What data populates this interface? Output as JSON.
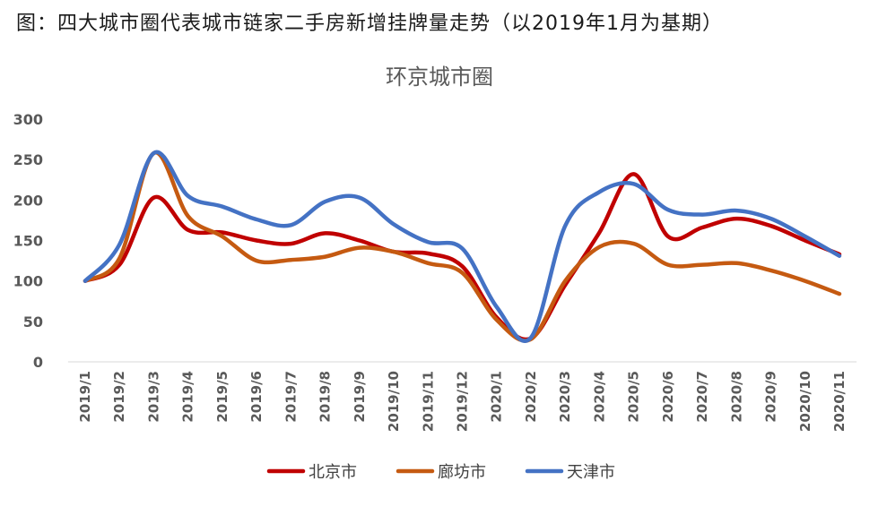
{
  "caption": "图：四大城市圈代表城市链家二手房新增挂牌量走势（以2019年1月为基期）",
  "chart_data": {
    "type": "line",
    "title": "环京城市圈",
    "xlabel": "",
    "ylabel": "",
    "ylim": [
      0,
      300
    ],
    "yticks": [
      0,
      50,
      100,
      150,
      200,
      250,
      300
    ],
    "grid": false,
    "legend_position": "bottom",
    "categories": [
      "2019/1",
      "2019/2",
      "2019/3",
      "2019/4",
      "2019/5",
      "2019/6",
      "2019/7",
      "2019/8",
      "2019/9",
      "2019/10",
      "2019/11",
      "2019/12",
      "2020/1",
      "2020/2",
      "2020/3",
      "2020/4",
      "2020/5",
      "2020/6",
      "2020/7",
      "2020/8",
      "2020/9",
      "2020/10",
      "2020/11"
    ],
    "series": [
      {
        "name": "北京市",
        "color": "#C00000",
        "values": [
          100,
          120,
          203,
          163,
          160,
          150,
          146,
          159,
          150,
          136,
          134,
          118,
          55,
          29,
          95,
          160,
          232,
          155,
          166,
          177,
          168,
          150,
          133
        ]
      },
      {
        "name": "廊坊市",
        "color": "#C55A11",
        "values": [
          100,
          128,
          258,
          180,
          155,
          125,
          126,
          130,
          141,
          136,
          122,
          110,
          52,
          28,
          100,
          142,
          146,
          120,
          120,
          122,
          113,
          100,
          84
        ]
      },
      {
        "name": "天津市",
        "color": "#4472C4",
        "values": [
          100,
          145,
          258,
          205,
          192,
          176,
          169,
          198,
          203,
          170,
          148,
          140,
          68,
          30,
          168,
          210,
          220,
          188,
          182,
          187,
          177,
          155,
          131
        ]
      }
    ]
  }
}
